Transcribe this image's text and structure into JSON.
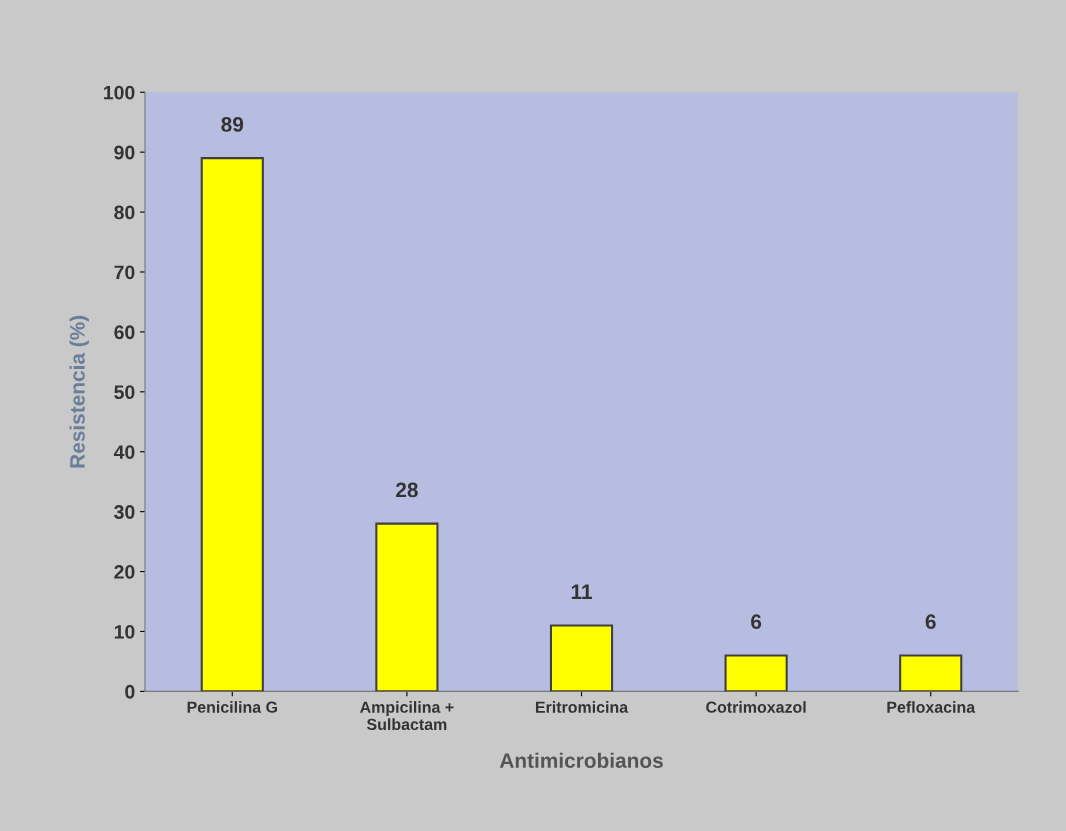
{
  "chart_data": {
    "type": "bar",
    "categories": [
      "Penicilina G",
      "Ampicilina +\nSulbactam",
      "Eritromicina",
      "Cotrimoxazol",
      "Pefloxacina"
    ],
    "values": [
      89,
      28,
      11,
      6,
      6
    ],
    "color": "#ffff00",
    "xlabel": "Antimicrobianos",
    "ylabel": "Resistencia (%)",
    "ylim": [
      0,
      100
    ],
    "yticks": [
      0,
      10,
      20,
      30,
      40,
      50,
      60,
      70,
      80,
      90,
      100
    ],
    "grid": false,
    "data_labels": true
  }
}
